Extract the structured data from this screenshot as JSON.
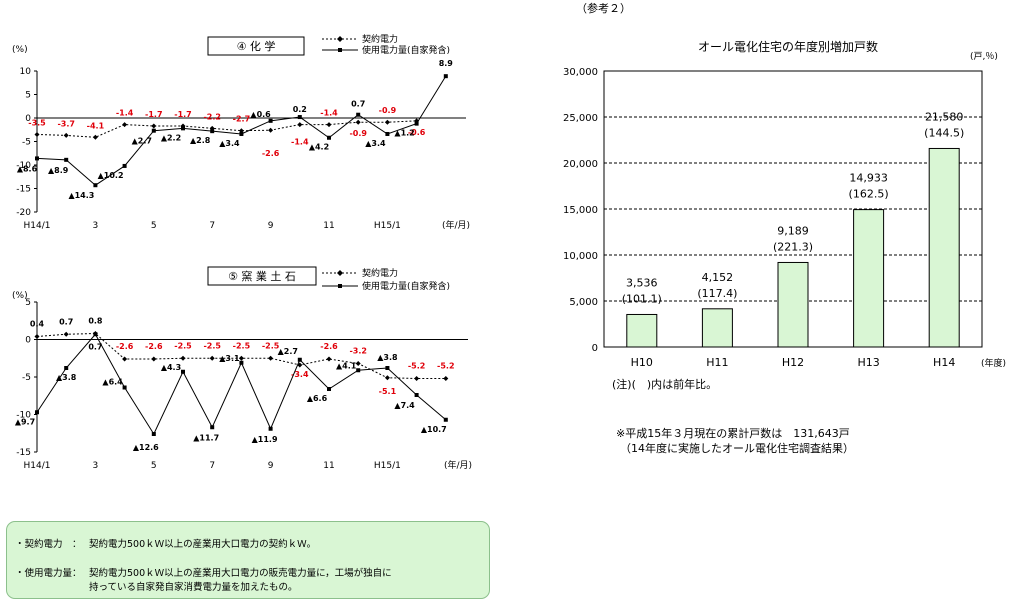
{
  "reference_label": "（参考２）",
  "chart_data": [
    {
      "type": "line",
      "title": "④ 化 学",
      "ylabel": "(%)",
      "xlabel": "(年/月)",
      "ylim": [
        -20,
        10
      ],
      "yticks": [
        10,
        5,
        0,
        -5,
        -10,
        -15,
        -20
      ],
      "x_tick_labels": [
        "H14/1",
        "3",
        "5",
        "7",
        "9",
        "11",
        "H15/1"
      ],
      "x_tick_index": [
        0,
        2,
        4,
        6,
        8,
        10,
        12
      ],
      "legend": [
        "契約電力",
        "使用電力量(自家発含)"
      ],
      "series": [
        {
          "name": "契約電力",
          "values": [
            -3.5,
            -3.7,
            -4.1,
            -1.4,
            -1.7,
            -1.7,
            -2.2,
            -2.7,
            -2.6,
            -1.4,
            -1.4,
            -0.9,
            -0.9,
            -0.6
          ],
          "labels": [
            "-3.5",
            "-3.7",
            "-4.1",
            "-1.4",
            "-1.7",
            "-1.7",
            "-2.2",
            "-2.7",
            "-2.6",
            "-1.4",
            "-1.4",
            "-0.9",
            "-0.9",
            "-0.6"
          ]
        },
        {
          "name": "使用電力量(自家発含)",
          "values": [
            -8.6,
            -8.9,
            -14.3,
            -10.2,
            -2.7,
            -2.2,
            -2.8,
            -3.4,
            -0.6,
            0.2,
            -4.2,
            0.7,
            -3.4,
            -1.2,
            8.9
          ],
          "labels": [
            "▲8.6",
            "▲8.9",
            "▲14.3",
            "▲10.2",
            "▲2.7",
            "▲2.2",
            "▲2.8",
            "▲3.4",
            "▲0.6",
            "0.2",
            "▲4.2",
            "0.7",
            "▲3.4",
            "▲1.2",
            "8.9"
          ]
        }
      ]
    },
    {
      "type": "line",
      "title": "⑤ 窯 業 土 石",
      "ylabel": "(%)",
      "xlabel": "(年/月)",
      "ylim": [
        -15,
        5
      ],
      "yticks": [
        5,
        0,
        -5,
        -10,
        -15
      ],
      "x_tick_labels": [
        "H14/1",
        "3",
        "5",
        "7",
        "9",
        "11",
        "H15/1"
      ],
      "x_tick_index": [
        0,
        2,
        4,
        6,
        8,
        10,
        12
      ],
      "legend": [
        "契約電力",
        "使用電力量(自家発含)"
      ],
      "series": [
        {
          "name": "契約電力",
          "values": [
            0.4,
            0.7,
            0.8,
            -2.6,
            -2.6,
            -2.5,
            -2.5,
            -2.5,
            -2.5,
            -3.4,
            -2.6,
            -3.2,
            -5.1,
            -5.2,
            -5.2
          ],
          "labels": [
            "0.4",
            "0.7",
            "0.8",
            "-2.6",
            "-2.6",
            "-2.5",
            "-2.5",
            "-2.5",
            "-2.5",
            "-3.4",
            "-2.6",
            "-3.2",
            "-5.1",
            "-5.2",
            "-5.2"
          ]
        },
        {
          "name": "使用電力量(自家発含)",
          "values": [
            -9.7,
            -3.8,
            0.7,
            -6.4,
            -12.6,
            -4.3,
            -11.7,
            -3.1,
            -11.9,
            -2.7,
            -6.6,
            -4.1,
            -3.8,
            -7.4,
            -10.7
          ],
          "labels": [
            "▲9.7",
            "▲3.8",
            "0.7",
            "▲6.4",
            "▲12.6",
            "▲4.3",
            "▲11.7",
            "▲3.1",
            "▲11.9",
            "▲2.7",
            "▲6.6",
            "▲4.1",
            "▲3.8",
            "▲7.4",
            "▲10.7"
          ]
        }
      ]
    },
    {
      "type": "bar",
      "title": "オール電化住宅の年度別増加戸数",
      "ylabel": "(戸,％)",
      "xlabel": "(年度)",
      "ylim": [
        0,
        30000
      ],
      "yticks": [
        "0",
        "5,000",
        "10,000",
        "15,000",
        "20,000",
        "25,000",
        "30,000"
      ],
      "categories": [
        "H10",
        "H11",
        "H12",
        "H13",
        "H14"
      ],
      "values": [
        3536,
        4152,
        9189,
        14933,
        21580
      ],
      "value_labels": [
        "3,536",
        "4,152",
        "9,189",
        "14,933",
        "21,580"
      ],
      "ratio_labels": [
        "(101.1)",
        "(117.4)",
        "(221.3)",
        "(162.5)",
        "(144.5)"
      ],
      "bar_color": "#d9f6d4"
    }
  ],
  "bar_note": "(注)(　)内は前年比。",
  "cumulative_note": {
    "line1": "※平成15年３月現在の累計戸数は　131,643戸",
    "line2": "（14年度に実施したオール電化住宅調査結果）"
  },
  "definitions": [
    {
      "term": "・契約電力　：",
      "text": "契約電力500ｋＷ以上の産業用大口電力の契約ｋＷ。"
    },
    {
      "term": "・使用電力量：",
      "text": "契約電力500ｋＷ以上の産業用大口電力の販売電力量に，工場が独自に"
    },
    {
      "term": "",
      "text": "持っている自家発自家消費電力量を加えたもの。"
    }
  ],
  "colors": {
    "negative_label": "#e0000a",
    "bar_fill": "#d9f6d4",
    "box_fill": "#d9f6d4"
  }
}
